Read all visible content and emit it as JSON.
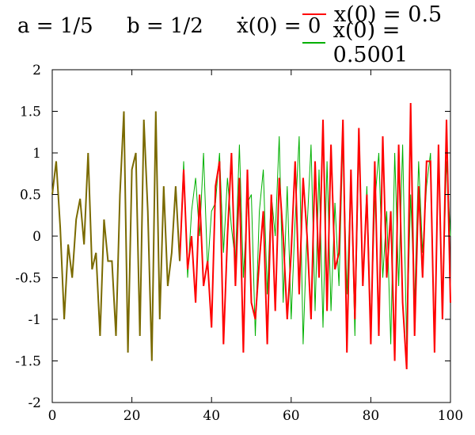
{
  "header": {
    "param_a": "a = 1/5",
    "param_b": "b = 1/2",
    "param_v0": "ẋ(0) = 0"
  },
  "chart_data": {
    "type": "line",
    "title": "",
    "xlabel": "",
    "ylabel": "",
    "xlim": [
      0,
      100
    ],
    "ylim": [
      -2,
      2
    ],
    "x_ticks": [
      "0",
      "20",
      "40",
      "60",
      "80",
      "100"
    ],
    "y_ticks": [
      "2",
      "1.5",
      "1",
      "0.5",
      "0",
      "-0.5",
      "-1",
      "-1.5",
      "-2"
    ],
    "grid": false,
    "legend_position": "top-right, outside the plot",
    "colors": {
      "series_1": "#ff0000",
      "series_2": "#00b000",
      "overlap": "#7a6a00"
    },
    "series": [
      {
        "name": "x(0) = 0.5",
        "x": [
          0,
          1,
          2,
          3,
          4,
          5,
          6,
          7,
          8,
          9,
          10,
          11,
          12,
          13,
          14,
          15,
          16,
          17,
          18,
          19,
          20,
          21,
          22,
          23,
          24,
          25,
          26,
          27,
          28,
          29,
          30,
          31,
          32,
          33,
          34,
          35,
          36,
          37,
          38,
          39,
          40,
          41,
          42,
          43,
          44,
          45,
          46,
          47,
          48,
          49,
          50,
          51,
          52,
          53,
          54,
          55,
          56,
          57,
          58,
          59,
          60,
          61,
          62,
          63,
          64,
          65,
          66,
          67,
          68,
          69,
          70,
          71,
          72,
          73,
          74,
          75,
          76,
          77,
          78,
          79,
          80,
          81,
          82,
          83,
          84,
          85,
          86,
          87,
          88,
          89,
          90,
          91,
          92,
          93,
          94,
          95,
          96,
          97,
          98,
          99,
          100
        ],
        "y": [
          0.5,
          0.9,
          0.1,
          -1.0,
          -0.1,
          -0.5,
          0.2,
          0.45,
          -0.1,
          1.0,
          -0.4,
          -0.2,
          -1.2,
          0.2,
          -0.3,
          -0.3,
          -1.2,
          0.5,
          1.5,
          -1.4,
          0.8,
          1.0,
          -1.2,
          1.4,
          0.3,
          -1.5,
          1.5,
          -1.0,
          0.6,
          -0.6,
          -0.2,
          0.6,
          -0.3,
          0.8,
          -0.4,
          0.0,
          -0.8,
          0.5,
          -0.6,
          -0.3,
          -1.1,
          0.6,
          0.9,
          -1.3,
          0.0,
          1.0,
          -0.6,
          0.7,
          -1.4,
          0.8,
          -0.8,
          -1.0,
          -0.3,
          0.3,
          -1.3,
          0.5,
          -0.9,
          0.7,
          0.0,
          -1.0,
          -0.2,
          0.9,
          -0.7,
          0.7,
          0.0,
          -1.0,
          0.9,
          -0.5,
          1.4,
          -0.9,
          1.1,
          -0.4,
          -0.2,
          1.4,
          -1.4,
          0.8,
          -1.0,
          1.3,
          -0.6,
          0.5,
          -1.3,
          0.9,
          -1.2,
          1.2,
          -0.5,
          0.3,
          -1.5,
          1.1,
          -0.8,
          -1.6,
          1.6,
          -1.2,
          0.6,
          -0.5,
          0.9,
          0.9,
          -1.4,
          1.1,
          -1.0,
          1.4,
          -0.8
        ],
        "color": "#ff0000"
      },
      {
        "name": "x(0) = 0.5001",
        "x": [
          0,
          1,
          2,
          3,
          4,
          5,
          6,
          7,
          8,
          9,
          10,
          11,
          12,
          13,
          14,
          15,
          16,
          17,
          18,
          19,
          20,
          21,
          22,
          23,
          24,
          25,
          26,
          27,
          28,
          29,
          30,
          31,
          32,
          33,
          34,
          35,
          36,
          37,
          38,
          39,
          40,
          41,
          42,
          43,
          44,
          45,
          46,
          47,
          48,
          49,
          50,
          51,
          52,
          53,
          54,
          55,
          56,
          57,
          58,
          59,
          60,
          61,
          62,
          63,
          64,
          65,
          66,
          67,
          68,
          69,
          70,
          71,
          72,
          73,
          74,
          75,
          76,
          77,
          78,
          79,
          80,
          81,
          82,
          83,
          84,
          85,
          86,
          87,
          88,
          89,
          90,
          91,
          92,
          93,
          94,
          95,
          96,
          97,
          98,
          99,
          100
        ],
        "y": [
          0.5,
          0.9,
          0.1,
          -1.0,
          -0.1,
          -0.5,
          0.2,
          0.45,
          -0.1,
          1.0,
          -0.4,
          -0.2,
          -1.2,
          0.2,
          -0.3,
          -0.3,
          -1.2,
          0.5,
          1.5,
          -1.4,
          0.8,
          1.0,
          -1.2,
          1.4,
          0.3,
          -1.5,
          1.5,
          -1.0,
          0.6,
          -0.6,
          -0.2,
          0.6,
          -0.3,
          0.9,
          -0.5,
          0.3,
          0.7,
          0.0,
          1.0,
          -0.4,
          0.3,
          0.4,
          1.0,
          -0.2,
          0.7,
          0.1,
          -0.3,
          1.1,
          -0.5,
          0.4,
          0.5,
          -1.2,
          0.3,
          0.8,
          -0.7,
          0.5,
          0.0,
          1.2,
          -0.8,
          0.6,
          -1.0,
          0.2,
          1.2,
          -1.3,
          0.1,
          1.1,
          -0.9,
          0.8,
          -1.1,
          0.9,
          -0.9,
          0.4,
          -0.6,
          1.2,
          -0.7,
          0.7,
          -1.2,
          1.1,
          -0.6,
          0.6,
          -1.1,
          0.4,
          1.0,
          -0.5,
          0.3,
          -1.3,
          1.0,
          -0.6,
          1.1,
          -1.3,
          0.5,
          -0.8,
          0.9,
          -0.2,
          0.6,
          1.0,
          -1.3,
          1.1,
          -0.9,
          0.9,
          0.0
        ],
        "color": "#00b000"
      }
    ]
  }
}
